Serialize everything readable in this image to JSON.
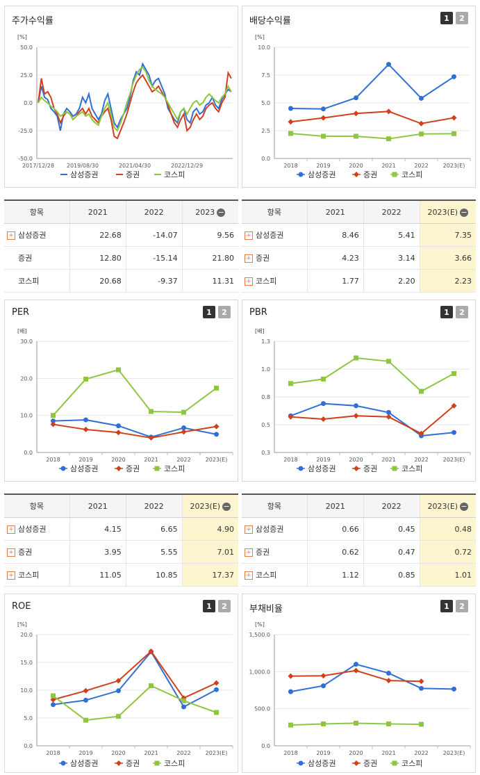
{
  "colors": {
    "samsung": "#2f6fd6",
    "sector": "#d0401a",
    "kospi": "#8ec63f"
  },
  "legend": [
    "삼성증권",
    "증권",
    "코스피"
  ],
  "panels": {
    "stock": {
      "title": "주가수익률",
      "unit": "[%]"
    },
    "dividend": {
      "title": "배당수익률",
      "unit": "[%]"
    },
    "per": {
      "title": "PER",
      "unit": "[배]"
    },
    "pbr": {
      "title": "PBR",
      "unit": "[배]"
    },
    "roe": {
      "title": "ROE",
      "unit": "[%]"
    },
    "debt": {
      "title": "부채비율",
      "unit": "[%]"
    }
  },
  "pager": [
    "1",
    "2"
  ],
  "chart_data": [
    {
      "id": "stock",
      "type": "line",
      "title": "주가수익률",
      "ylabel": "[%]",
      "ylim": [
        -50,
        50
      ],
      "yticks": [
        "50.0",
        "25.0",
        "0.0",
        "-25.0",
        "-50.0"
      ],
      "xticks": [
        "2017/12/28",
        "2019/08/30",
        "2021/04/30",
        "2022/12/29"
      ],
      "series": [
        {
          "name": "삼성증권",
          "values": [
            0,
            15,
            5,
            3,
            -5,
            -8,
            -12,
            -25,
            -10,
            -5,
            -8,
            -12,
            -10,
            -5,
            5,
            0,
            8,
            -5,
            -10,
            -15,
            -10,
            2,
            8,
            -5,
            -18,
            -22,
            -15,
            -10,
            -5,
            5,
            20,
            28,
            25,
            35,
            30,
            25,
            15,
            20,
            22,
            15,
            8,
            -5,
            -10,
            -15,
            -18,
            -8,
            -5,
            -15,
            -18,
            -8,
            -5,
            -10,
            -8,
            -2,
            0,
            5,
            -2,
            -5,
            3,
            8,
            12,
            10
          ]
        },
        {
          "name": "증권",
          "values": [
            0,
            22,
            8,
            10,
            5,
            -5,
            -10,
            -18,
            -12,
            -8,
            -10,
            -15,
            -12,
            -8,
            -5,
            -10,
            -5,
            -12,
            -15,
            -18,
            -12,
            -8,
            -5,
            -15,
            -30,
            -32,
            -25,
            -18,
            -10,
            0,
            10,
            18,
            22,
            25,
            20,
            15,
            10,
            12,
            15,
            10,
            5,
            -2,
            -10,
            -18,
            -22,
            -15,
            -10,
            -25,
            -22,
            -15,
            -10,
            -15,
            -12,
            -5,
            -2,
            0,
            -5,
            -8,
            0,
            5,
            27,
            22
          ]
        },
        {
          "name": "코스피",
          "values": [
            0,
            5,
            2,
            0,
            -3,
            -5,
            -8,
            -12,
            -10,
            -8,
            -10,
            -15,
            -12,
            -10,
            -8,
            -12,
            -10,
            -15,
            -18,
            -20,
            -12,
            -5,
            0,
            -10,
            -22,
            -25,
            -18,
            -10,
            0,
            8,
            18,
            25,
            30,
            32,
            28,
            20,
            15,
            12,
            10,
            8,
            5,
            0,
            -5,
            -10,
            -15,
            -8,
            -5,
            -10,
            -5,
            0,
            2,
            -2,
            0,
            5,
            8,
            5,
            2,
            0,
            5,
            8,
            15,
            10
          ]
        }
      ]
    },
    {
      "id": "dividend",
      "type": "line",
      "title": "배당수익률",
      "ylabel": "[%]",
      "ylim": [
        0,
        10
      ],
      "yticks": [
        "10.0",
        "7.5",
        "5.0",
        "2.5",
        "0.0"
      ],
      "categories": [
        "2018",
        "2019",
        "2020",
        "2021",
        "2022",
        "2023(E)"
      ],
      "series": [
        {
          "name": "삼성증권",
          "values": [
            4.5,
            4.45,
            5.45,
            8.46,
            5.41,
            7.35
          ]
        },
        {
          "name": "증권",
          "values": [
            3.3,
            3.65,
            4.05,
            4.23,
            3.14,
            3.66
          ]
        },
        {
          "name": "코스피",
          "values": [
            2.25,
            2.0,
            2.0,
            1.77,
            2.2,
            2.23
          ]
        }
      ]
    },
    {
      "id": "per",
      "type": "line",
      "title": "PER",
      "ylabel": "[배]",
      "ylim": [
        0,
        30
      ],
      "yticks": [
        "30.0",
        "20.0",
        "10.0",
        "0.0"
      ],
      "categories": [
        "2018",
        "2019",
        "2020",
        "2021",
        "2022",
        "2023(E)"
      ],
      "series": [
        {
          "name": "삼성증권",
          "values": [
            8.5,
            8.8,
            7.2,
            4.15,
            6.65,
            4.9
          ]
        },
        {
          "name": "증권",
          "values": [
            7.6,
            6.2,
            5.4,
            3.95,
            5.55,
            7.01
          ]
        },
        {
          "name": "코스피",
          "values": [
            10.0,
            19.8,
            22.3,
            11.05,
            10.85,
            17.37
          ]
        }
      ]
    },
    {
      "id": "pbr",
      "type": "line",
      "title": "PBR",
      "ylabel": "[배]",
      "ylim": [
        0.3,
        1.3
      ],
      "yticks": [
        "1.3",
        "1.0",
        "0.8",
        "0.5",
        "0.3"
      ],
      "categories": [
        "2018",
        "2019",
        "2020",
        "2021",
        "2022",
        "2023(E)"
      ],
      "series": [
        {
          "name": "삼성증권",
          "values": [
            0.63,
            0.74,
            0.72,
            0.66,
            0.45,
            0.48
          ]
        },
        {
          "name": "증권",
          "values": [
            0.62,
            0.6,
            0.63,
            0.62,
            0.47,
            0.72
          ]
        },
        {
          "name": "코스피",
          "values": [
            0.92,
            0.96,
            1.15,
            1.12,
            0.85,
            1.01
          ]
        }
      ]
    },
    {
      "id": "roe",
      "type": "line",
      "title": "ROE",
      "ylabel": "[%]",
      "ylim": [
        0,
        20
      ],
      "yticks": [
        "20.0",
        "15.0",
        "10.0",
        "5.0",
        "0.0"
      ],
      "categories": [
        "2018",
        "2019",
        "2020",
        "2021",
        "2022",
        "2023(E)"
      ],
      "series": [
        {
          "name": "삼성증권",
          "values": [
            7.4,
            8.2,
            9.9,
            16.9,
            7.0,
            10.1
          ]
        },
        {
          "name": "증권",
          "values": [
            8.3,
            9.9,
            11.7,
            17.0,
            8.6,
            11.3
          ]
        },
        {
          "name": "코스피",
          "values": [
            9.0,
            4.6,
            5.3,
            10.8,
            8.1,
            6.0
          ]
        }
      ]
    },
    {
      "id": "debt",
      "type": "line",
      "title": "부채비율",
      "ylabel": "[%]",
      "ylim": [
        0,
        1500
      ],
      "yticks": [
        "1,500.0",
        "1,000.0",
        "500.0",
        "0.0"
      ],
      "categories": [
        "2018",
        "2019",
        "2020",
        "2021",
        "2022",
        "2023(E)"
      ],
      "series": [
        {
          "name": "삼성증권",
          "values": [
            730,
            810,
            1100,
            980,
            775,
            765
          ]
        },
        {
          "name": "증권",
          "values": [
            940,
            945,
            1015,
            880,
            870,
            null
          ]
        },
        {
          "name": "코스피",
          "values": [
            280,
            295,
            305,
            295,
            290,
            null
          ]
        }
      ]
    }
  ],
  "tables": {
    "stock": {
      "headers": [
        "항목",
        "2021",
        "2022",
        "2023"
      ],
      "rows": [
        [
          "삼성증권",
          "22.68",
          "-14.07",
          "9.56"
        ],
        [
          "증권",
          "12.80",
          "-15.14",
          "21.80"
        ],
        [
          "코스피",
          "20.68",
          "-9.37",
          "11.31"
        ]
      ],
      "plus": [
        true,
        false,
        false
      ]
    },
    "dividend": {
      "headers": [
        "항목",
        "2021",
        "2022",
        "2023(E)"
      ],
      "rows": [
        [
          "삼성증권",
          "8.46",
          "5.41",
          "7.35"
        ],
        [
          "증권",
          "4.23",
          "3.14",
          "3.66"
        ],
        [
          "코스피",
          "1.77",
          "2.20",
          "2.23"
        ]
      ],
      "plus": [
        true,
        true,
        true
      ]
    },
    "per": {
      "headers": [
        "항목",
        "2021",
        "2022",
        "2023(E)"
      ],
      "rows": [
        [
          "삼성증권",
          "4.15",
          "6.65",
          "4.90"
        ],
        [
          "증권",
          "3.95",
          "5.55",
          "7.01"
        ],
        [
          "코스피",
          "11.05",
          "10.85",
          "17.37"
        ]
      ],
      "plus": [
        true,
        true,
        true
      ]
    },
    "pbr": {
      "headers": [
        "항목",
        "2021",
        "2022",
        "2023(E)"
      ],
      "rows": [
        [
          "삼성증권",
          "0.66",
          "0.45",
          "0.48"
        ],
        [
          "증권",
          "0.62",
          "0.47",
          "0.72"
        ],
        [
          "코스피",
          "1.12",
          "0.85",
          "1.01"
        ]
      ],
      "plus": [
        true,
        true,
        true
      ]
    }
  }
}
